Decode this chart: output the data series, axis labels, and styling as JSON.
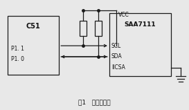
{
  "bg_color": "#e8e8e8",
  "fig_width": 2.73,
  "fig_height": 1.59,
  "dpi": 100,
  "c51_label": "C51",
  "c51_p11": "P1. 1",
  "c51_p10": "P1. 0",
  "saa_label": "SAA7111",
  "saa_scl": "SCL",
  "saa_sda": "SDA",
  "saa_iicsa": "IICSA",
  "vcc_label": "VCC",
  "fig_caption": "图1   硬件连接图",
  "line_color": "#1a1a1a",
  "text_color": "#111111"
}
